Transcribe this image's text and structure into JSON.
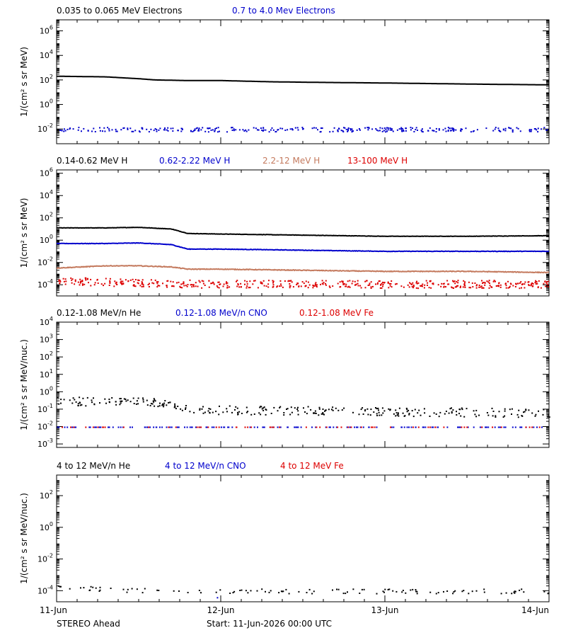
{
  "chart_data": [
    {
      "type": "scatter",
      "ylabel": "1/(cm² s sr MeV)",
      "log_y": true,
      "yticks": [
        {
          "v": -2,
          "label": "10",
          "exp": "-2"
        },
        {
          "v": 0,
          "label": "10",
          "exp": "0"
        },
        {
          "v": 2,
          "label": "10",
          "exp": "2"
        },
        {
          "v": 4,
          "label": "10",
          "exp": "4"
        },
        {
          "v": 6,
          "label": "10",
          "exp": "6"
        }
      ],
      "ylim_log10": [
        -3.2,
        6.9
      ],
      "legend": [
        {
          "name": "0.035 to 0.065 MeV Electrons",
          "color": "#000000"
        },
        {
          "name": "0.7 to 4.0 Mev Electrons",
          "color": "#0000cc"
        }
      ],
      "series": [
        {
          "name": "0.035 to 0.065 MeV Electrons",
          "color": "#000000",
          "style": "line",
          "days": [
            0,
            0.3,
            0.5,
            0.6,
            0.8,
            1.0,
            1.3,
            1.6,
            2.0,
            2.3,
            2.6,
            3.0
          ],
          "log10": [
            2.3,
            2.25,
            2.1,
            2.0,
            1.95,
            1.95,
            1.85,
            1.8,
            1.75,
            1.7,
            1.65,
            1.6
          ]
        },
        {
          "name": "0.7 to 4.0 Mev Electrons",
          "color": "#0000cc",
          "style": "noisy",
          "days": [
            0,
            3
          ],
          "log10": [
            -2,
            -2
          ],
          "spread": 0.18,
          "density": 300
        }
      ]
    },
    {
      "type": "scatter",
      "ylabel": "1/(cm² s sr MeV)",
      "log_y": true,
      "yticks": [
        {
          "v": -4,
          "label": "10",
          "exp": "-4"
        },
        {
          "v": -2,
          "label": "10",
          "exp": "-2"
        },
        {
          "v": 0,
          "label": "10",
          "exp": "0"
        },
        {
          "v": 2,
          "label": "10",
          "exp": "2"
        },
        {
          "v": 4,
          "label": "10",
          "exp": "4"
        },
        {
          "v": 6,
          "label": "10",
          "exp": "6"
        }
      ],
      "ylim_log10": [
        -5.0,
        6.3
      ],
      "legend": [
        {
          "name": "0.14-0.62 MeV H",
          "color": "#000000"
        },
        {
          "name": "0.62-2.22 MeV H",
          "color": "#0000cc"
        },
        {
          "name": "2.2-12 MeV H",
          "color": "#c47a5e"
        },
        {
          "name": "13-100 MeV H",
          "color": "#dd0000"
        }
      ],
      "series": [
        {
          "name": "0.14-0.62 MeV H",
          "color": "#000000",
          "style": "line",
          "days": [
            0,
            0.3,
            0.5,
            0.7,
            0.8,
            1.0,
            1.5,
            2.0,
            2.5,
            3.0
          ],
          "log10": [
            1.1,
            1.1,
            1.15,
            1.0,
            0.6,
            0.55,
            0.45,
            0.35,
            0.35,
            0.4
          ],
          "spread": 0.03
        },
        {
          "name": "0.62-2.22 MeV H",
          "color": "#0000cc",
          "style": "line",
          "days": [
            0,
            0.3,
            0.5,
            0.7,
            0.8,
            1.0,
            1.5,
            2.0,
            2.5,
            3.0
          ],
          "log10": [
            -0.3,
            -0.3,
            -0.25,
            -0.4,
            -0.8,
            -0.8,
            -0.9,
            -1.0,
            -1.0,
            -1.0
          ],
          "spread": 0.04
        },
        {
          "name": "2.2-12 MeV H",
          "color": "#c47a5e",
          "style": "line",
          "days": [
            0,
            0.3,
            0.5,
            0.7,
            0.8,
            1.0,
            1.5,
            2.0,
            2.5,
            3.0
          ],
          "log10": [
            -2.5,
            -2.3,
            -2.3,
            -2.4,
            -2.6,
            -2.6,
            -2.7,
            -2.8,
            -2.8,
            -2.9
          ],
          "spread": 0.06
        },
        {
          "name": "13-100 MeV H",
          "color": "#dd0000",
          "style": "noisy",
          "days": [
            0,
            0.5,
            1.0,
            3.0
          ],
          "log10": [
            -3.6,
            -3.8,
            -3.9,
            -3.9
          ],
          "spread": 0.35,
          "density": 500
        }
      ]
    },
    {
      "type": "scatter",
      "ylabel": "1/(cm² s sr MeV/nuc.)",
      "log_y": true,
      "yticks": [
        {
          "v": -3,
          "label": "10",
          "exp": "-3"
        },
        {
          "v": -2,
          "label": "10",
          "exp": "-2"
        },
        {
          "v": -1,
          "label": "10",
          "exp": "-1"
        },
        {
          "v": 0,
          "label": "10",
          "exp": "0"
        },
        {
          "v": 1,
          "label": "10",
          "exp": "1"
        },
        {
          "v": 2,
          "label": "10",
          "exp": "2"
        },
        {
          "v": 3,
          "label": "10",
          "exp": "3"
        },
        {
          "v": 4,
          "label": "10",
          "exp": "4"
        }
      ],
      "ylim_log10": [
        -3.2,
        4.0
      ],
      "legend": [
        {
          "name": "0.12-1.08 MeV/n He",
          "color": "#000000"
        },
        {
          "name": "0.12-1.08 MeV/n CNO",
          "color": "#0000cc"
        },
        {
          "name": "0.12-1.08 MeV Fe",
          "color": "#dd0000"
        }
      ],
      "series": [
        {
          "name": "0.12-1.08 MeV/n He",
          "color": "#000000",
          "style": "sparse",
          "days": [
            0,
            0.7,
            0.8,
            3.0
          ],
          "log10": [
            -0.5,
            -0.6,
            -1.0,
            -1.2
          ],
          "spread": 0.25,
          "density": 300
        },
        {
          "name": "0.12-1.08 MeV/n CNO",
          "color": "#0000cc",
          "style": "floor",
          "days": [
            0,
            3.0
          ],
          "log10": [
            -2,
            -2
          ],
          "density": 160
        },
        {
          "name": "0.12-1.08 MeV Fe",
          "color": "#dd0000",
          "style": "floor",
          "days": [
            0,
            3.0
          ],
          "log10": [
            -2,
            -2
          ],
          "density": 60
        }
      ]
    },
    {
      "type": "scatter",
      "ylabel": "1/(cm² s sr MeV/nuc.)",
      "log_y": true,
      "yticks": [
        {
          "v": -4,
          "label": "10",
          "exp": "-4"
        },
        {
          "v": -2,
          "label": "10",
          "exp": "-2"
        },
        {
          "v": 0,
          "label": "10",
          "exp": "0"
        },
        {
          "v": 2,
          "label": "10",
          "exp": "2"
        }
      ],
      "ylim_log10": [
        -4.7,
        3.3
      ],
      "legend": [
        {
          "name": "4 to 12 MeV/n He",
          "color": "#000000"
        },
        {
          "name": "4 to 12 MeV/n CNO",
          "color": "#0000cc"
        },
        {
          "name": "4 to 12 MeV Fe",
          "color": "#dd0000"
        }
      ],
      "series": [
        {
          "name": "4 to 12 MeV/n He",
          "color": "#000000",
          "style": "sparse",
          "days": [
            0,
            0.7,
            1.0,
            3.0
          ],
          "log10": [
            -3.8,
            -4.0,
            -4.0,
            -4.0
          ],
          "spread": 0.15,
          "density": 110
        },
        {
          "name": "4 to 12 MeV/n CNO",
          "color": "#0000cc",
          "style": "floor",
          "days": [
            0.95,
            1.05
          ],
          "log10": [
            -4.4,
            -4.4
          ],
          "density": 1
        }
      ]
    }
  ],
  "xaxis": {
    "range_days": [
      0,
      3
    ],
    "ticks": [
      {
        "day": 0,
        "label": "11-Jun"
      },
      {
        "day": 1,
        "label": "12-Jun"
      },
      {
        "day": 2,
        "label": "13-Jun"
      },
      {
        "day": 3,
        "label": "14-Jun"
      }
    ]
  },
  "footer": {
    "spacecraft": "STEREO Ahead",
    "start": "Start: 11-Jun-2026 00:00 UTC"
  }
}
